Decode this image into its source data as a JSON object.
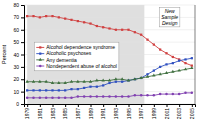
{
  "chart_data": {
    "type": "line",
    "x": [
      1979,
      1980,
      1981,
      1982,
      1983,
      1984,
      1985,
      1986,
      1987,
      1988,
      1989,
      1990,
      1991,
      1992,
      1993,
      1994,
      1995,
      1996,
      1997,
      1998,
      1999,
      2000,
      2001,
      2002,
      2003,
      2004,
      2005
    ],
    "series": [
      {
        "name": "Alcohol dependence syndrome",
        "color": "#d04040",
        "marker": "square",
        "values": [
          71,
          71,
          70,
          71,
          71,
          70,
          69,
          68,
          67,
          66,
          65,
          63,
          62,
          61,
          60,
          60,
          60,
          58,
          56,
          52,
          48,
          44,
          41,
          38,
          36,
          33,
          31
        ]
      },
      {
        "name": "Alcoholic psychoses",
        "color": "#3050c0",
        "marker": "square",
        "values": [
          11,
          11,
          11,
          11,
          11,
          11,
          11,
          12,
          12,
          13,
          14,
          14,
          15,
          17,
          18,
          18,
          19,
          20,
          21,
          24,
          27,
          30,
          32,
          33,
          35,
          36,
          37
        ]
      },
      {
        "name": "Any dementia",
        "color": "#407040",
        "marker": "triangle",
        "values": [
          18,
          18,
          18,
          18,
          17,
          17,
          17,
          18,
          18,
          18,
          18,
          19,
          19,
          19,
          20,
          20,
          19,
          20,
          21,
          22,
          23,
          24,
          25,
          26,
          27,
          28,
          29
        ]
      },
      {
        "name": "Nondependent abuse of alcohol",
        "color": "#8040b0",
        "marker": "circle",
        "values": [
          5,
          5,
          5,
          5,
          5,
          5,
          5,
          5,
          6,
          6,
          6,
          6,
          6,
          6,
          6,
          6,
          6,
          7,
          7,
          7,
          7,
          8,
          8,
          8,
          8,
          9,
          9
        ]
      }
    ],
    "xlim": [
      1978.5,
      2005.5
    ],
    "xticks": [
      1979,
      1981,
      1983,
      1985,
      1987,
      1989,
      1991,
      1993,
      1995,
      1997,
      1999,
      2001,
      2003,
      2005
    ],
    "ylim": [
      0,
      80
    ],
    "yticks": [
      0,
      10,
      20,
      30,
      40,
      50,
      60,
      70,
      80
    ],
    "ylabel": "Percent",
    "grid": true,
    "legend": "left",
    "shaded_range": [
      1979,
      1997.5
    ],
    "annotations": [
      {
        "text": "New\nSample\nDesign",
        "x": 2001.5,
        "y": 70
      }
    ]
  }
}
